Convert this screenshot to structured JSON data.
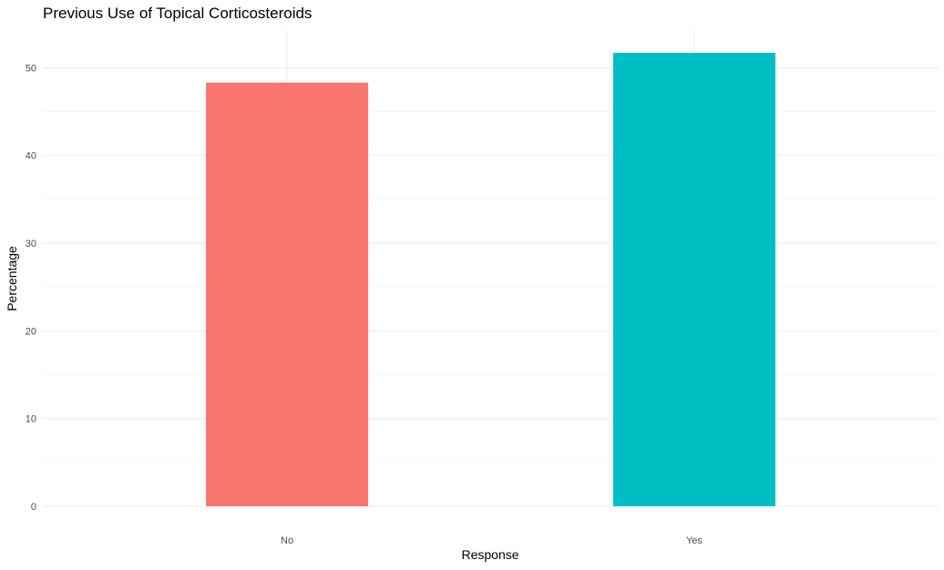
{
  "chart_data": {
    "type": "bar",
    "title": "Previous Use of Topical Corticosteroids",
    "xlabel": "Response",
    "ylabel": "Percentage",
    "categories": [
      "No",
      "Yes"
    ],
    "values": [
      48.3,
      51.7
    ],
    "colors": [
      "#F8766D",
      "#00BFC4"
    ],
    "ylim": [
      0,
      54.3
    ],
    "yticks": [
      0,
      10,
      20,
      30,
      40,
      50
    ],
    "ytick_labels": [
      "0",
      "10",
      "20",
      "30",
      "40",
      "50"
    ],
    "grid": true,
    "legend": "none"
  }
}
